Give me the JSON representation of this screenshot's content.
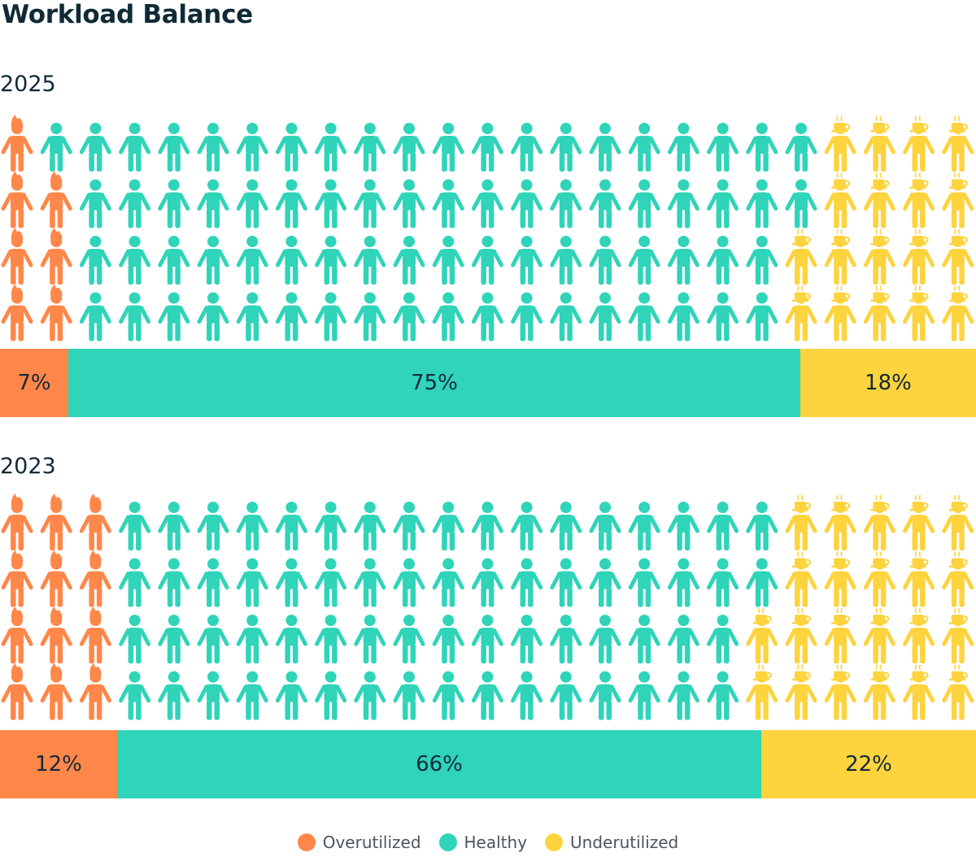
{
  "title": "Workload Balance",
  "colors": {
    "overutilized": "#ff8749",
    "healthy": "#2fd4b9",
    "underutilized": "#fdd33e"
  },
  "legend": [
    {
      "key": "overutilized",
      "label": "Overutilized"
    },
    {
      "key": "healthy",
      "label": "Healthy"
    },
    {
      "key": "underutilized",
      "label": "Underutilized"
    }
  ],
  "chart_data": [
    {
      "type": "bar",
      "title": "2025",
      "icon_grid": {
        "overutilized": 7,
        "healthy": 75,
        "underutilized": 18
      },
      "series": [
        {
          "name": "Overutilized",
          "values": [
            7
          ],
          "label": "7%"
        },
        {
          "name": "Healthy",
          "values": [
            75
          ],
          "label": "75%"
        },
        {
          "name": "Underutilized",
          "values": [
            18
          ],
          "label": "18%"
        }
      ]
    },
    {
      "type": "bar",
      "title": "2023",
      "icon_grid": {
        "overutilized": 12,
        "healthy": 66,
        "underutilized": 22
      },
      "series": [
        {
          "name": "Overutilized",
          "values": [
            12
          ],
          "label": "12%"
        },
        {
          "name": "Healthy",
          "values": [
            66
          ],
          "label": "66%"
        },
        {
          "name": "Underutilized",
          "values": [
            22
          ],
          "label": "22%"
        }
      ]
    }
  ]
}
